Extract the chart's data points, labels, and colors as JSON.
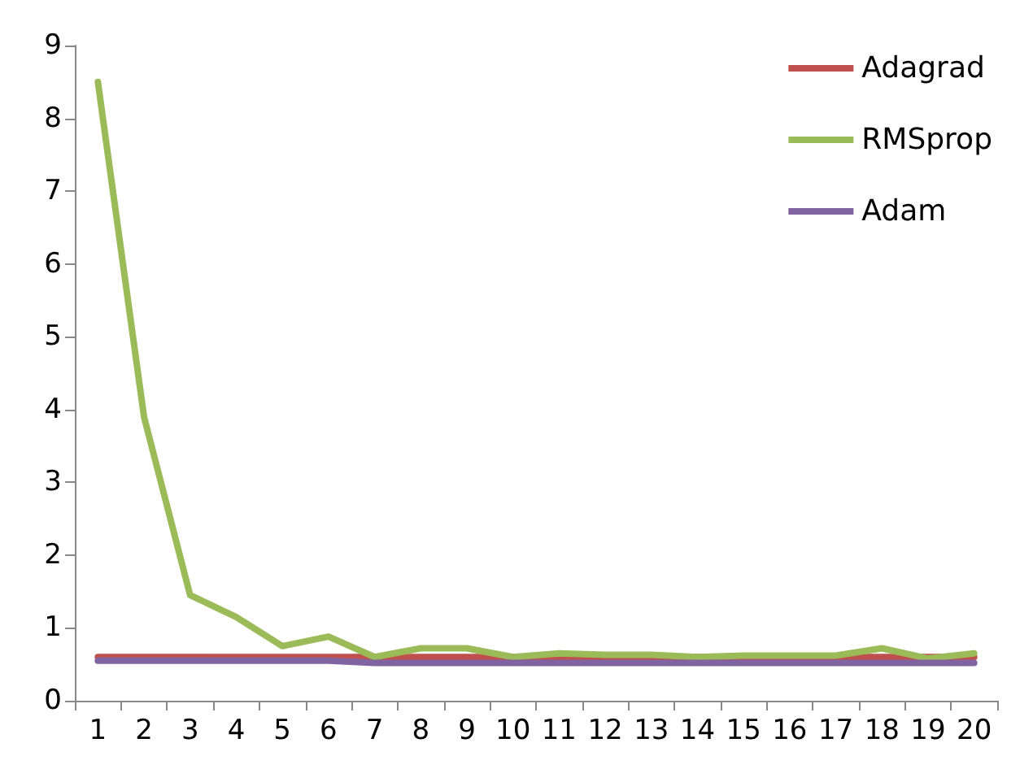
{
  "chart_data": {
    "type": "line",
    "categories": [
      "1",
      "2",
      "3",
      "4",
      "5",
      "6",
      "7",
      "8",
      "9",
      "10",
      "11",
      "12",
      "13",
      "14",
      "15",
      "16",
      "17",
      "18",
      "19",
      "20"
    ],
    "series": [
      {
        "name": "Adagrad",
        "color": "#c0504d",
        "values": [
          0.6,
          0.6,
          0.6,
          0.6,
          0.6,
          0.6,
          0.6,
          0.6,
          0.6,
          0.6,
          0.6,
          0.6,
          0.6,
          0.6,
          0.6,
          0.6,
          0.6,
          0.6,
          0.6,
          0.6
        ]
      },
      {
        "name": "RMSprop",
        "color": "#9bbb59",
        "values": [
          8.5,
          3.9,
          1.45,
          1.15,
          0.75,
          0.88,
          0.6,
          0.72,
          0.72,
          0.6,
          0.65,
          0.63,
          0.63,
          0.6,
          0.62,
          0.62,
          0.62,
          0.72,
          0.58,
          0.65
        ]
      },
      {
        "name": "Adam",
        "color": "#8064a2",
        "values": [
          0.55,
          0.55,
          0.55,
          0.55,
          0.55,
          0.55,
          0.52,
          0.52,
          0.52,
          0.52,
          0.52,
          0.52,
          0.52,
          0.52,
          0.52,
          0.52,
          0.52,
          0.52,
          0.52,
          0.52
        ]
      }
    ],
    "ylim": [
      0,
      9
    ],
    "yticks": [
      0,
      1,
      2,
      3,
      4,
      5,
      6,
      7,
      8,
      9
    ],
    "grid": false,
    "legend": "top right",
    "marker": "none",
    "line_style": "solid"
  }
}
